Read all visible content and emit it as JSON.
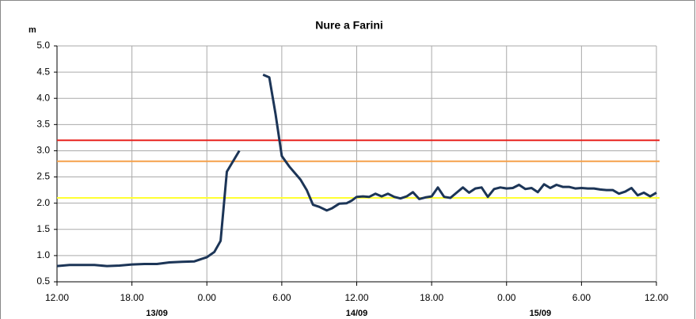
{
  "chart_data": {
    "type": "line",
    "title": "Nure a Farini",
    "y_label": "m",
    "xlim": [
      0,
      48
    ],
    "xticks": [
      {
        "value": 0,
        "label": "12.00"
      },
      {
        "value": 6,
        "label": "18.00"
      },
      {
        "value": 12,
        "label": "0.00"
      },
      {
        "value": 18,
        "label": "6.00"
      },
      {
        "value": 24,
        "label": "12.00"
      },
      {
        "value": 30,
        "label": "18.00"
      },
      {
        "value": 36,
        "label": "0.00"
      },
      {
        "value": 42,
        "label": "6.00"
      },
      {
        "value": 48,
        "label": "12.00"
      }
    ],
    "date_labels": [
      {
        "value": 8,
        "label": "13/09"
      },
      {
        "value": 24,
        "label": "14/09"
      },
      {
        "value": 38.7,
        "label": "15/09"
      }
    ],
    "ylim": [
      0.5,
      5.0
    ],
    "yticks": [
      0.5,
      {
        "value": 1,
        "label": "1.0"
      },
      1.5,
      {
        "value": 2,
        "label": "2.0"
      },
      2.5,
      {
        "value": 3,
        "label": "3.0"
      },
      3.5,
      {
        "value": 4,
        "label": "4.0"
      },
      4.5,
      {
        "value": 5,
        "label": "5.0"
      }
    ],
    "grid": true,
    "thresholds": [
      {
        "value": 3.2,
        "color": "#e8231f"
      },
      {
        "value": 2.8,
        "color": "#f5a04a"
      },
      {
        "value": 2.1,
        "color": "#ffff33"
      }
    ],
    "series": [
      {
        "color": "#1c3557",
        "x": [
          0,
          1,
          2,
          3,
          4,
          5,
          6,
          7,
          8,
          9,
          10,
          11,
          12,
          12.6,
          13.1,
          13.6,
          14.6,
          15.5,
          16.5,
          17,
          17.5,
          18,
          18.6,
          19.5,
          20,
          20.5,
          21,
          21.6,
          22,
          22.6,
          23.2,
          23.6,
          24,
          24.5,
          25,
          25.5,
          26,
          26.5,
          27,
          27.5,
          28,
          28.5,
          29,
          29.5,
          30,
          30.5,
          31,
          31.5,
          32,
          32.5,
          33,
          33.5,
          34,
          34.5,
          35,
          35.5,
          36,
          36.5,
          37,
          37.5,
          38,
          38.5,
          39,
          39.5,
          40,
          40.5,
          41,
          41.5,
          42,
          42.5,
          43,
          43.5,
          44,
          44.5,
          45,
          45.5,
          46,
          46.5,
          47,
          47.5,
          48
        ],
        "values": [
          0.8,
          0.82,
          0.82,
          0.82,
          0.8,
          0.81,
          0.83,
          0.84,
          0.84,
          0.87,
          0.88,
          0.89,
          0.97,
          1.07,
          1.28,
          2.6,
          3.0,
          null,
          4.45,
          4.4,
          3.7,
          2.9,
          2.7,
          2.45,
          2.25,
          1.97,
          1.93,
          1.86,
          1.9,
          1.99,
          2.0,
          2.05,
          2.12,
          2.13,
          2.12,
          2.18,
          2.13,
          2.18,
          2.12,
          2.09,
          2.13,
          2.21,
          2.08,
          2.11,
          2.13,
          2.3,
          2.12,
          2.1,
          2.2,
          2.3,
          2.2,
          2.28,
          2.3,
          2.12,
          2.27,
          2.3,
          2.28,
          2.29,
          2.35,
          2.27,
          2.29,
          2.21,
          2.36,
          2.29,
          2.35,
          2.31,
          2.31,
          2.28,
          2.29,
          2.28,
          2.28,
          2.26,
          2.25,
          2.25,
          2.18,
          2.22,
          2.29,
          2.15,
          2.2,
          2.13,
          2.2
        ]
      }
    ]
  }
}
